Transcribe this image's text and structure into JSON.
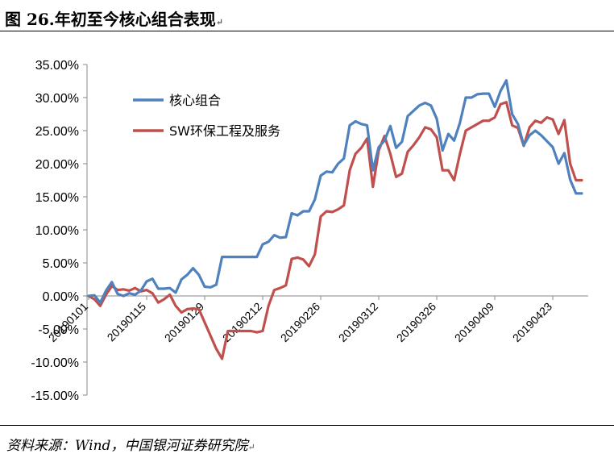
{
  "figure": {
    "title": "图 26.年初至今核心组合表现",
    "title_mark": "↵",
    "source": "资料来源：Wind，中国银河证券研究院",
    "source_mark": "↵"
  },
  "chart_data": {
    "type": "line",
    "ylim": [
      -0.15,
      0.35
    ],
    "y_ticks": [
      "35.00%",
      "30.00%",
      "25.00%",
      "20.00%",
      "15.00%",
      "10.00%",
      "5.00%",
      "0.00%",
      "-5.00%",
      "-10.00%",
      "-15.00%"
    ],
    "y_tick_values": [
      0.35,
      0.3,
      0.25,
      0.2,
      0.15,
      0.1,
      0.05,
      0.0,
      -0.05,
      -0.1,
      -0.15
    ],
    "x_ticks": [
      "20190101",
      "20190115",
      "20190129",
      "20190212",
      "20190226",
      "20190312",
      "20190326",
      "20190409",
      "20190423"
    ],
    "x_tick_indices": [
      0,
      10,
      20,
      30,
      40,
      50,
      60,
      70,
      80
    ],
    "grid": false,
    "legend_position": "top-left",
    "series": [
      {
        "name": "核心组合",
        "color": "#4F81BD",
        "values": [
          0.0,
          0.001,
          -0.01,
          0.008,
          0.021,
          0.003,
          0.0,
          0.004,
          0.002,
          0.008,
          0.022,
          0.026,
          0.011,
          0.011,
          0.012,
          0.005,
          0.025,
          0.032,
          0.042,
          0.032,
          0.014,
          0.013,
          0.017,
          0.059,
          0.059,
          0.059,
          0.059,
          0.059,
          0.059,
          0.059,
          0.078,
          0.082,
          0.092,
          0.088,
          0.089,
          0.125,
          0.122,
          0.128,
          0.128,
          0.146,
          0.182,
          0.188,
          0.187,
          0.2,
          0.208,
          0.258,
          0.264,
          0.26,
          0.258,
          0.19,
          0.225,
          0.235,
          0.257,
          0.224,
          0.233,
          0.272,
          0.28,
          0.288,
          0.292,
          0.288,
          0.268,
          0.22,
          0.245,
          0.235,
          0.262,
          0.3,
          0.3,
          0.305,
          0.306,
          0.306,
          0.286,
          0.31,
          0.326,
          0.275,
          0.26,
          0.228,
          0.243,
          0.25,
          0.243,
          0.234,
          0.225,
          0.2,
          0.216,
          0.176,
          0.155,
          0.155
        ]
      },
      {
        "name": "SW环保工程及服务",
        "color": "#C0504D",
        "values": [
          0.0,
          -0.005,
          -0.015,
          0.002,
          0.015,
          0.009,
          0.01,
          0.008,
          0.012,
          0.007,
          0.009,
          0.004,
          -0.01,
          -0.005,
          0.002,
          -0.015,
          -0.025,
          -0.02,
          -0.019,
          -0.02,
          -0.04,
          -0.06,
          -0.08,
          -0.095,
          -0.053,
          -0.053,
          -0.053,
          -0.053,
          -0.053,
          -0.055,
          -0.053,
          -0.015,
          0.009,
          0.012,
          0.016,
          0.056,
          0.058,
          0.055,
          0.045,
          0.063,
          0.12,
          0.128,
          0.127,
          0.131,
          0.137,
          0.19,
          0.215,
          0.224,
          0.238,
          0.165,
          0.22,
          0.242,
          0.215,
          0.18,
          0.185,
          0.218,
          0.228,
          0.24,
          0.255,
          0.252,
          0.24,
          0.19,
          0.19,
          0.175,
          0.215,
          0.25,
          0.255,
          0.26,
          0.265,
          0.265,
          0.27,
          0.29,
          0.293,
          0.258,
          0.254,
          0.227,
          0.255,
          0.265,
          0.262,
          0.27,
          0.267,
          0.245,
          0.266,
          0.2,
          0.175,
          0.175
        ]
      }
    ]
  }
}
